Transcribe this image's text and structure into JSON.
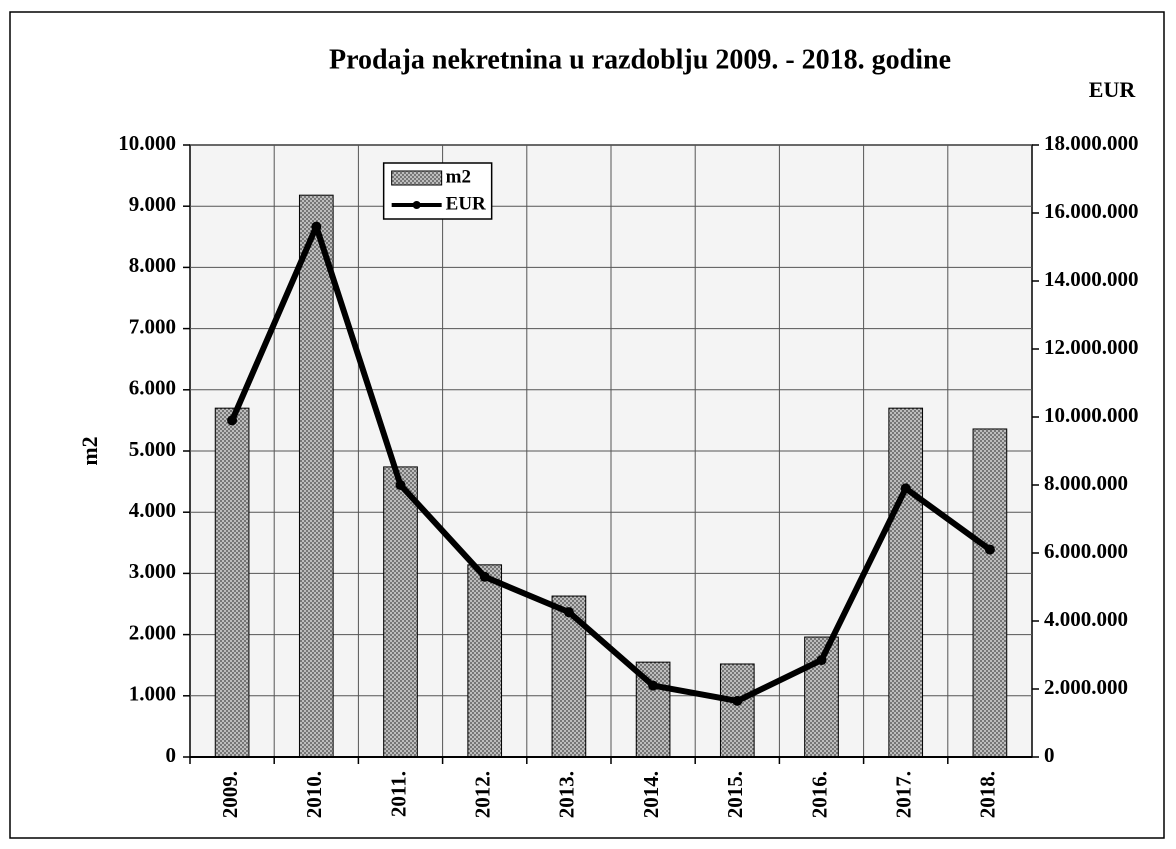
{
  "chart_data": {
    "type": "bar_line",
    "title": "Prodaja nekretnina u razdoblju 2009. - 2018. godine",
    "y_label": "m2",
    "y2_label": "EUR",
    "categories": [
      "2009.",
      "2010.",
      "2011.",
      "2012.",
      "2013.",
      "2014.",
      "2015.",
      "2016.",
      "2017.",
      "2018."
    ],
    "series": [
      {
        "name": "m2",
        "type": "bar",
        "color": "#bdbdbd",
        "values": [
          5700,
          9180,
          4740,
          3140,
          2630,
          1550,
          1520,
          1960,
          5700,
          5360
        ]
      },
      {
        "name": "EUR",
        "type": "line",
        "axis": "y2",
        "color": "#000000",
        "values": [
          9900000,
          15600000,
          8000000,
          5300000,
          4260000,
          2100000,
          1650000,
          2850000,
          7900000,
          6100000
        ]
      }
    ],
    "ylim": [
      0,
      10000
    ],
    "yticks": [
      0,
      {
        "value": 1000,
        "label": "1.000"
      },
      {
        "value": 2000,
        "label": "2.000"
      },
      {
        "value": 3000,
        "label": "3.000"
      },
      {
        "value": 4000,
        "label": "4.000"
      },
      {
        "value": 5000,
        "label": "5.000"
      },
      {
        "value": 6000,
        "label": "6.000"
      },
      {
        "value": 7000,
        "label": "7.000"
      },
      {
        "value": 8000,
        "label": "8.000"
      },
      {
        "value": 9000,
        "label": "9.000"
      },
      {
        "value": 10000,
        "label": "10.000"
      }
    ],
    "y2lim": [
      0,
      18000000
    ],
    "y2ticks": [
      0,
      {
        "value": 2000000,
        "label": "2.000.000"
      },
      {
        "value": 4000000,
        "label": "4.000.000"
      },
      {
        "value": 6000000,
        "label": "6.000.000"
      },
      {
        "value": 8000000,
        "label": "8.000.000"
      },
      {
        "value": 10000000,
        "label": "10.000.000"
      },
      {
        "value": 12000000,
        "label": "12.000.000"
      },
      {
        "value": 14000000,
        "label": "14.000.000"
      },
      {
        "value": 16000000,
        "label": "16.000.000"
      },
      {
        "value": 18000000,
        "label": "18.000.000"
      }
    ],
    "grid": true,
    "legend": "top"
  }
}
